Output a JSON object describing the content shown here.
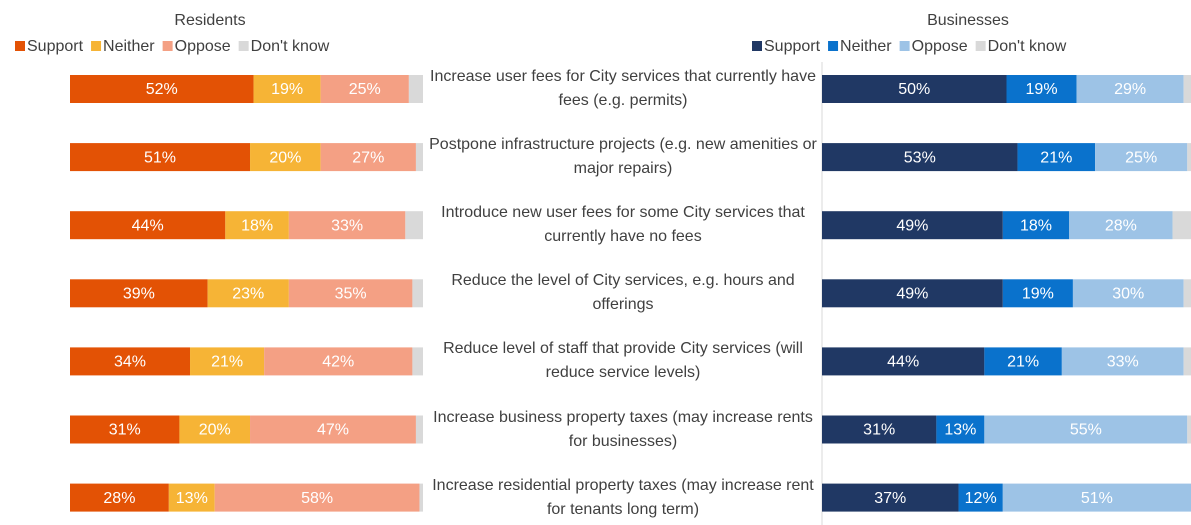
{
  "chart_data": [
    {
      "type": "stacked-barh",
      "title": "Residents",
      "categories": [
        "Increase user fees for City services that currently have fees (e.g. permits)",
        "Postpone infrastructure projects (e.g. new amenities or major repairs)",
        "Introduce new user fees for some City services that currently have no fees",
        "Reduce the level of City services, e.g. hours and offerings",
        "Reduce level of staff that provide City services (will reduce service levels)",
        "Increase business property taxes (may increase rents for businesses)",
        "Increase residential property taxes (may increase rent for tenants long term)"
      ],
      "xlim": [
        0,
        100
      ],
      "series": [
        {
          "name": "Support",
          "color": "#e35205",
          "values": [
            52,
            51,
            44,
            39,
            34,
            31,
            28
          ],
          "value_labels": [
            "52%",
            "51%",
            "44%",
            "39%",
            "34%",
            "31%",
            "28%"
          ]
        },
        {
          "name": "Neither",
          "color": "#f6b436",
          "values": [
            19,
            20,
            18,
            23,
            21,
            20,
            13
          ],
          "value_labels": [
            "19%",
            "20%",
            "18%",
            "23%",
            "21%",
            "20%",
            "13%"
          ]
        },
        {
          "name": "Oppose",
          "color": "#f4a084",
          "values": [
            25,
            27,
            33,
            35,
            42,
            47,
            58
          ],
          "value_labels": [
            "25%",
            "27%",
            "33%",
            "35%",
            "42%",
            "47%",
            "58%"
          ]
        },
        {
          "name": "Don't know",
          "color": "#d9d9d9",
          "values": [
            4,
            2,
            5,
            3,
            3,
            2,
            1
          ]
        }
      ]
    },
    {
      "type": "stacked-barh",
      "title": "Businesses",
      "xlim": [
        0,
        100
      ],
      "series": [
        {
          "name": "Support",
          "color": "#203864",
          "values": [
            50,
            53,
            49,
            49,
            44,
            31,
            37
          ],
          "value_labels": [
            "50%",
            "53%",
            "49%",
            "49%",
            "44%",
            "31%",
            "37%"
          ]
        },
        {
          "name": "Neither",
          "color": "#0a72cc",
          "values": [
            19,
            21,
            18,
            19,
            21,
            13,
            12
          ],
          "value_labels": [
            "19%",
            "21%",
            "18%",
            "19%",
            "21%",
            "13%",
            "12%"
          ]
        },
        {
          "name": "Oppose",
          "color": "#9dc3e6",
          "values": [
            29,
            25,
            28,
            30,
            33,
            55,
            51
          ],
          "value_labels": [
            "29%",
            "25%",
            "28%",
            "30%",
            "33%",
            "55%",
            "51%"
          ]
        },
        {
          "name": "Don't know",
          "color": "#d9d9d9",
          "values": [
            2,
            1,
            5,
            2,
            2,
            1,
            0
          ]
        }
      ]
    }
  ]
}
